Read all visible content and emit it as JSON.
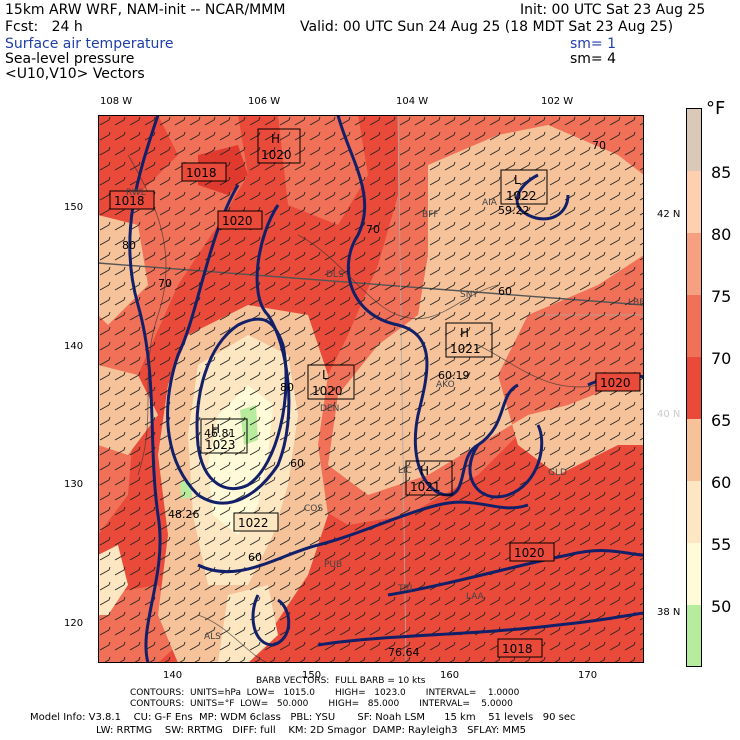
{
  "header": {
    "title": "15km ARW WRF, NAM-init -- NCAR/MMM",
    "init": "Init: 00 UTC Sat 23 Aug 25",
    "fcst": "Fcst:   24 h",
    "valid": "Valid: 00 UTC Sun 24 Aug 25 (18 MDT Sat 23 Aug 25)",
    "field1": "Surface air temperature",
    "field2": "Sea-level pressure",
    "field3": "<U10,V10> Vectors",
    "sm1": "sm= 1",
    "sm2": "sm= 4"
  },
  "axes": {
    "top_lon": [
      "108 W",
      "106 W",
      "104 W",
      "102 W"
    ],
    "left_y": [
      "150",
      "140",
      "130",
      "120"
    ],
    "bottom_x": [
      "140",
      "150",
      "160",
      "170"
    ],
    "right_lat": [
      "42 N",
      "40 N",
      "38 N"
    ]
  },
  "colorbar": {
    "unit": "°F",
    "labels": [
      "85",
      "80",
      "75",
      "70",
      "65",
      "60",
      "55",
      "50"
    ],
    "colors": [
      "#d9c9b6",
      "#ffd0b0",
      "#f6a082",
      "#f07058",
      "#ea4a3a",
      "#f5c29a",
      "#fce7c2",
      "#fffbd8",
      "#b7ec9e"
    ]
  },
  "map_labels": {
    "highs": [
      {
        "box": "H",
        "value": "1020"
      },
      {
        "box": "H",
        "value": "1021"
      },
      {
        "box": "H",
        "value": "1023"
      },
      {
        "box": "H",
        "value": "1021"
      }
    ],
    "lows": [
      {
        "box": "L",
        "value": "1018"
      },
      {
        "box": "L",
        "value": "1020"
      },
      {
        "box": "L",
        "value": "1020"
      },
      {
        "box": "L",
        "value": "1018"
      },
      {
        "box": "L",
        "value": "1018"
      }
    ],
    "boxed_values": [
      "1022",
      "1022",
      "1020",
      "1020",
      "1018",
      "1018"
    ],
    "point_values": [
      "59.22",
      "60.19",
      "46.81",
      "48.26",
      "76.64"
    ],
    "contour_labels": [
      "1020",
      "1020",
      "1022",
      "1018",
      "80",
      "70",
      "70",
      "80",
      "60",
      "60",
      "60",
      "70"
    ],
    "stations": [
      "RWL",
      "BFF",
      "AIA",
      "DLS",
      "SNY",
      "LBF",
      "AKO",
      "DEN",
      "GLD",
      "LIC",
      "COS",
      "PUB",
      "LAA",
      "ALS",
      "TRI"
    ]
  },
  "footer": {
    "barb": "BARB VECTORS:  FULL BARB = 10 kts",
    "contours1": "CONTOURS:  UNITS=hPa  LOW=   1015.0       HIGH=   1023.0       INTERVAL=    1.0000",
    "contours2": "CONTOURS:  UNITS=°F  LOW=   50.000       HIGH=   85.000       INTERVAL=    5.0000",
    "model1": "Model Info: V3.8.1    CU: G-F Ens  MP: WDM 6class   PBL: YSU       SF: Noah LSM      15 km    51 levels   90 sec",
    "model2": "LW: RRTMG    SW: RRTMG   DIFF: full    KM: 2D Smagor  DAMP: Rayleigh3   SFLAY: MM5"
  }
}
